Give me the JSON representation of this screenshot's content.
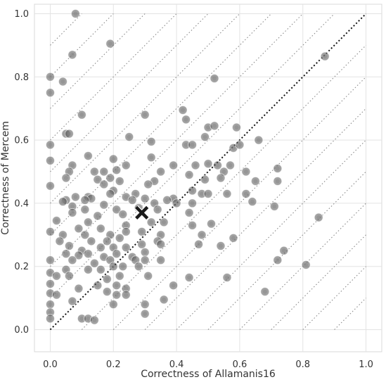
{
  "chart_data": {
    "type": "scatter",
    "xlabel": "Correctness of Allamanis16",
    "ylabel": "Correctness of Mercem",
    "xlim": [
      -0.05,
      1.05
    ],
    "ylim": [
      -0.07,
      1.03
    ],
    "xticks": [
      "0.0",
      "0.2",
      "0.4",
      "0.6",
      "0.8",
      "1.0"
    ],
    "yticks": [
      "0.0",
      "0.2",
      "0.4",
      "0.6",
      "0.8",
      "1.0"
    ],
    "grid": true,
    "diagonal_reference": {
      "from": [
        0,
        0
      ],
      "to": [
        1,
        1
      ],
      "style": "dotted"
    },
    "offset_lines": [
      -0.9,
      -0.8,
      -0.7,
      -0.6,
      -0.5,
      -0.4,
      -0.3,
      -0.2,
      -0.1,
      0.1,
      0.2,
      0.3,
      0.4,
      0.5,
      0.6,
      0.7,
      0.8,
      0.9
    ],
    "marker_color": "#555555",
    "mean_marker": {
      "x": 0.29,
      "y": 0.37,
      "symbol": "X",
      "color": "#1a1a1a"
    },
    "points": [
      [
        0.08,
        1.0
      ],
      [
        0.19,
        0.905
      ],
      [
        0.07,
        0.87
      ],
      [
        0.87,
        0.865
      ],
      [
        0.0,
        0.8
      ],
      [
        0.04,
        0.785
      ],
      [
        0.0,
        0.75
      ],
      [
        0.52,
        0.795
      ],
      [
        0.1,
        0.68
      ],
      [
        0.3,
        0.68
      ],
      [
        0.42,
        0.695
      ],
      [
        0.43,
        0.665
      ],
      [
        0.05,
        0.62
      ],
      [
        0.06,
        0.62
      ],
      [
        0.5,
        0.64
      ],
      [
        0.52,
        0.645
      ],
      [
        0.59,
        0.64
      ],
      [
        0.0,
        0.585
      ],
      [
        0.25,
        0.61
      ],
      [
        0.32,
        0.595
      ],
      [
        0.43,
        0.585
      ],
      [
        0.49,
        0.61
      ],
      [
        0.45,
        0.585
      ],
      [
        0.58,
        0.575
      ],
      [
        0.6,
        0.585
      ],
      [
        0.66,
        0.6
      ],
      [
        0.0,
        0.535
      ],
      [
        0.12,
        0.55
      ],
      [
        0.2,
        0.54
      ],
      [
        0.07,
        0.52
      ],
      [
        0.32,
        0.545
      ],
      [
        0.39,
        0.52
      ],
      [
        0.46,
        0.52
      ],
      [
        0.5,
        0.525
      ],
      [
        0.53,
        0.52
      ],
      [
        0.57,
        0.52
      ],
      [
        0.06,
        0.5
      ],
      [
        0.14,
        0.5
      ],
      [
        0.17,
        0.5
      ],
      [
        0.21,
        0.505
      ],
      [
        0.24,
        0.52
      ],
      [
        0.35,
        0.5
      ],
      [
        0.44,
        0.49
      ],
      [
        0.55,
        0.5
      ],
      [
        0.62,
        0.5
      ],
      [
        0.72,
        0.51
      ],
      [
        0.05,
        0.48
      ],
      [
        0.15,
        0.475
      ],
      [
        0.19,
        0.48
      ],
      [
        0.22,
        0.47
      ],
      [
        0.33,
        0.47
      ],
      [
        0.49,
        0.475
      ],
      [
        0.54,
        0.48
      ],
      [
        0.65,
        0.47
      ],
      [
        0.72,
        0.47
      ],
      [
        0.0,
        0.455
      ],
      [
        0.17,
        0.46
      ],
      [
        0.31,
        0.46
      ],
      [
        0.2,
        0.44
      ],
      [
        0.45,
        0.44
      ],
      [
        0.12,
        0.42
      ],
      [
        0.19,
        0.43
      ],
      [
        0.27,
        0.43
      ],
      [
        0.39,
        0.415
      ],
      [
        0.05,
        0.41
      ],
      [
        0.08,
        0.42
      ],
      [
        0.13,
        0.415
      ],
      [
        0.24,
        0.42
      ],
      [
        0.3,
        0.415
      ],
      [
        0.48,
        0.43
      ],
      [
        0.5,
        0.43
      ],
      [
        0.56,
        0.43
      ],
      [
        0.62,
        0.43
      ],
      [
        0.04,
        0.405
      ],
      [
        0.11,
        0.41
      ],
      [
        0.17,
        0.395
      ],
      [
        0.26,
        0.41
      ],
      [
        0.33,
        0.4
      ],
      [
        0.37,
        0.41
      ],
      [
        0.4,
        0.4
      ],
      [
        0.45,
        0.4
      ],
      [
        0.64,
        0.405
      ],
      [
        0.71,
        0.39
      ],
      [
        0.07,
        0.39
      ],
      [
        0.11,
        0.38
      ],
      [
        0.21,
        0.38
      ],
      [
        0.28,
        0.385
      ],
      [
        0.34,
        0.38
      ],
      [
        0.07,
        0.37
      ],
      [
        0.15,
        0.36
      ],
      [
        0.23,
        0.365
      ],
      [
        0.44,
        0.37
      ],
      [
        0.02,
        0.345
      ],
      [
        0.12,
        0.34
      ],
      [
        0.24,
        0.33
      ],
      [
        0.32,
        0.34
      ],
      [
        0.36,
        0.34
      ],
      [
        0.45,
        0.33
      ],
      [
        0.51,
        0.335
      ],
      [
        0.85,
        0.355
      ],
      [
        0.0,
        0.31
      ],
      [
        0.04,
        0.3
      ],
      [
        0.09,
        0.32
      ],
      [
        0.16,
        0.32
      ],
      [
        0.19,
        0.3
      ],
      [
        0.24,
        0.31
      ],
      [
        0.29,
        0.31
      ],
      [
        0.35,
        0.3
      ],
      [
        0.48,
        0.3
      ],
      [
        0.11,
        0.3
      ],
      [
        0.13,
        0.28
      ],
      [
        0.18,
        0.28
      ],
      [
        0.22,
        0.29
      ],
      [
        0.29,
        0.27
      ],
      [
        0.34,
        0.28
      ],
      [
        0.03,
        0.28
      ],
      [
        0.06,
        0.265
      ],
      [
        0.1,
        0.25
      ],
      [
        0.16,
        0.26
      ],
      [
        0.2,
        0.26
      ],
      [
        0.24,
        0.26
      ],
      [
        0.35,
        0.27
      ],
      [
        0.47,
        0.27
      ],
      [
        0.54,
        0.265
      ],
      [
        0.58,
        0.29
      ],
      [
        0.74,
        0.25
      ],
      [
        0.05,
        0.24
      ],
      [
        0.09,
        0.235
      ],
      [
        0.12,
        0.24
      ],
      [
        0.17,
        0.23
      ],
      [
        0.21,
        0.24
      ],
      [
        0.26,
        0.23
      ],
      [
        0.3,
        0.245
      ],
      [
        0.0,
        0.22
      ],
      [
        0.07,
        0.22
      ],
      [
        0.14,
        0.21
      ],
      [
        0.19,
        0.22
      ],
      [
        0.23,
        0.2
      ],
      [
        0.27,
        0.22
      ],
      [
        0.3,
        0.22
      ],
      [
        0.35,
        0.22
      ],
      [
        0.72,
        0.22
      ],
      [
        0.81,
        0.205
      ],
      [
        0.05,
        0.19
      ],
      [
        0.12,
        0.19
      ],
      [
        0.16,
        0.19
      ],
      [
        0.2,
        0.2
      ],
      [
        0.28,
        0.2
      ],
      [
        0.0,
        0.18
      ],
      [
        0.02,
        0.17
      ],
      [
        0.06,
        0.17
      ],
      [
        0.18,
        0.16
      ],
      [
        0.22,
        0.17
      ],
      [
        0.31,
        0.17
      ],
      [
        0.44,
        0.165
      ],
      [
        0.56,
        0.165
      ],
      [
        0.0,
        0.145
      ],
      [
        0.09,
        0.13
      ],
      [
        0.15,
        0.14
      ],
      [
        0.21,
        0.14
      ],
      [
        0.24,
        0.13
      ],
      [
        0.39,
        0.14
      ],
      [
        0.0,
        0.115
      ],
      [
        0.02,
        0.11
      ],
      [
        0.18,
        0.12
      ],
      [
        0.21,
        0.11
      ],
      [
        0.24,
        0.11
      ],
      [
        0.68,
        0.12
      ],
      [
        0.0,
        0.08
      ],
      [
        0.07,
        0.09
      ],
      [
        0.2,
        0.08
      ],
      [
        0.3,
        0.08
      ],
      [
        0.36,
        0.095
      ],
      [
        0.0,
        0.055
      ],
      [
        0.3,
        0.05
      ],
      [
        0.0,
        0.035
      ],
      [
        0.1,
        0.035
      ],
      [
        0.12,
        0.035
      ],
      [
        0.14,
        0.03
      ]
    ]
  }
}
